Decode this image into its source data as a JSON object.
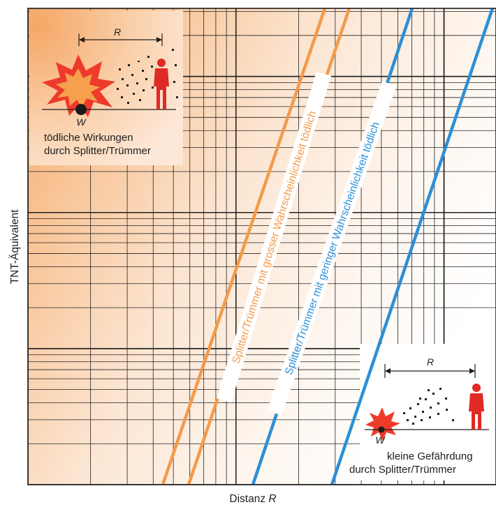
{
  "chart_data": {
    "type": "line",
    "xlabel": "Distanz",
    "xlabel_var": "R",
    "ylabel": "TNT-Äquivalent",
    "x_scale": "log",
    "y_scale": "log",
    "grid": true,
    "background": "orange-to-white gradient",
    "series": [
      {
        "name": "Splitter/Trümmer mit grosser Wahrscheinlichkeit tödlich",
        "color": "#f39a4a",
        "style": "double line",
        "points": [
          [
            0.0,
            0.0
          ],
          [
            0.35,
            1.0
          ]
        ]
      },
      {
        "name": "Splitter/Trümmer mit geringer Wahrscheinlichkeit tödlich",
        "color": "#2d8fd6",
        "style": "double line",
        "points": [
          [
            0.2,
            0.0
          ],
          [
            0.55,
            1.0
          ]
        ]
      }
    ],
    "annotations": {
      "top_left": {
        "lines": [
          "tödliche Wirkungen",
          "durch Splitter/Trümmer"
        ],
        "distance_label": "R",
        "source_label": "W"
      },
      "bottom_right": {
        "lines": [
          "kleine Gefährdung",
          "durch Splitter/Trümmer"
        ],
        "distance_label": "R",
        "source_label": "W"
      }
    }
  },
  "colors": {
    "orange": "#f39a4a",
    "blue": "#2d8fd6",
    "person": "#e02a26",
    "grid": "#222222"
  },
  "icons": [
    "explosion-icon",
    "person-icon",
    "bomb-icon"
  ]
}
